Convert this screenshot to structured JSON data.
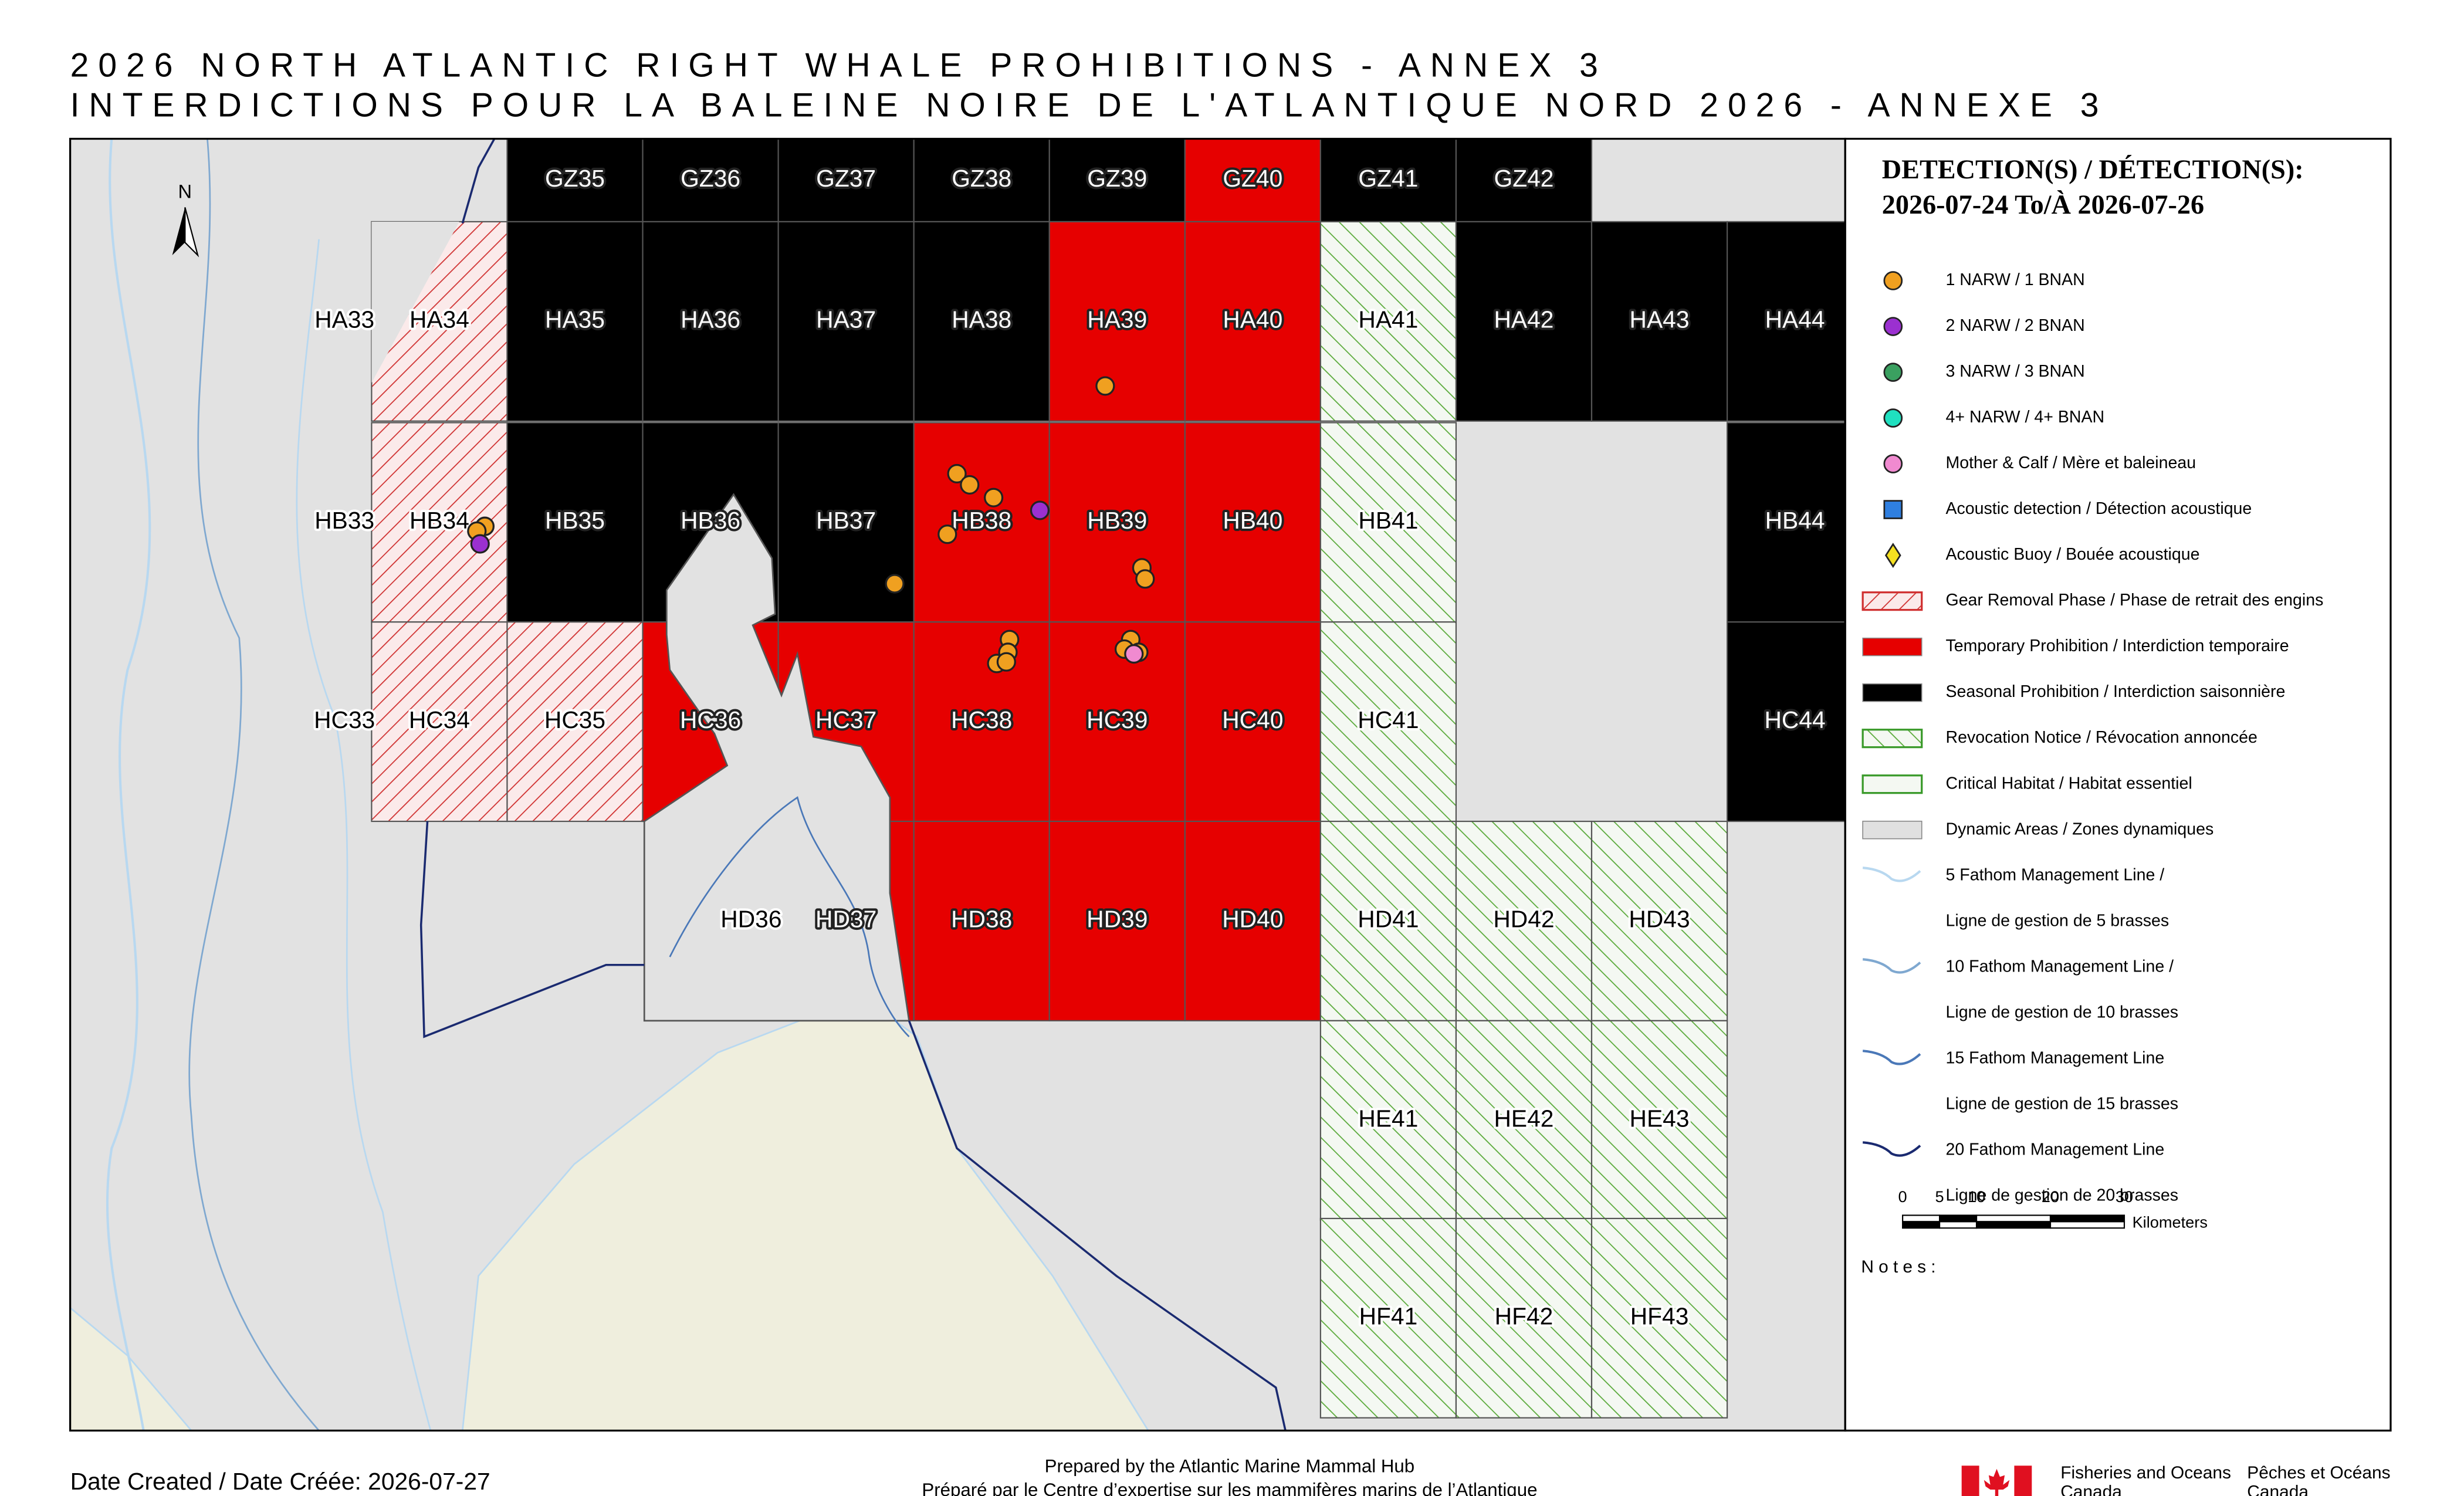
{
  "title": [
    "2026 NORTH ATLANTIC RIGHT WHALE PROHIBITIONS - ANNEX 3",
    "INTERDICTIONS POUR LA BALEINE NOIRE DE L'ATLANTIQUE NORD 2026 - ANNEXE 3"
  ],
  "north": "N",
  "cells": [
    {
      "label": "GZ35",
      "status": "seasonal"
    },
    {
      "label": "GZ36",
      "status": "seasonal"
    },
    {
      "label": "GZ37",
      "status": "seasonal"
    },
    {
      "label": "GZ38",
      "status": "seasonal"
    },
    {
      "label": "GZ39",
      "status": "seasonal"
    },
    {
      "label": "GZ40",
      "status": "temporary"
    },
    {
      "label": "GZ41",
      "status": "seasonal"
    },
    {
      "label": "GZ42",
      "status": "seasonal"
    },
    {
      "label": "HA33",
      "status": null
    },
    {
      "label": "HA34",
      "status": "gear"
    },
    {
      "label": "HA35",
      "status": "seasonal"
    },
    {
      "label": "HA36",
      "status": "seasonal"
    },
    {
      "label": "HA37",
      "status": "seasonal"
    },
    {
      "label": "HA38",
      "status": "seasonal"
    },
    {
      "label": "HA39",
      "status": "temporary"
    },
    {
      "label": "HA40",
      "status": "temporary"
    },
    {
      "label": "HA41",
      "status": "revocation"
    },
    {
      "label": "HA42",
      "status": "seasonal"
    },
    {
      "label": "HA43",
      "status": "seasonal"
    },
    {
      "label": "HA44",
      "status": "seasonal"
    },
    {
      "label": "HB33",
      "status": null
    },
    {
      "label": "HB34",
      "status": "gear"
    },
    {
      "label": "HB35",
      "status": "seasonal"
    },
    {
      "label": "HB36",
      "status": "seasonal"
    },
    {
      "label": "HB37",
      "status": "seasonal"
    },
    {
      "label": "HB38",
      "status": "temporary"
    },
    {
      "label": "HB39",
      "status": "temporary"
    },
    {
      "label": "HB40",
      "status": "temporary"
    },
    {
      "label": "HB41",
      "status": "revocation"
    },
    {
      "label": "HB44",
      "status": "seasonal"
    },
    {
      "label": "HC33",
      "status": null
    },
    {
      "label": "HC34",
      "status": "gear"
    },
    {
      "label": "HC35",
      "status": "gear"
    },
    {
      "label": "HC36",
      "status": "temporary"
    },
    {
      "label": "HC37",
      "status": "temporary"
    },
    {
      "label": "HC38",
      "status": "temporary"
    },
    {
      "label": "HC39",
      "status": "temporary"
    },
    {
      "label": "HC40",
      "status": "temporary"
    },
    {
      "label": "HC41",
      "status": "revocation"
    },
    {
      "label": "HC44",
      "status": "seasonal"
    },
    {
      "label": "HD36",
      "status": null
    },
    {
      "label": "HD37",
      "status": "temporary"
    },
    {
      "label": "HD38",
      "status": "temporary"
    },
    {
      "label": "HD39",
      "status": "temporary"
    },
    {
      "label": "HD40",
      "status": "temporary"
    },
    {
      "label": "HD41",
      "status": "revocation"
    },
    {
      "label": "HD42",
      "status": "revocation"
    },
    {
      "label": "HD43",
      "status": "revocation"
    },
    {
      "label": "HE41",
      "status": "revocation"
    },
    {
      "label": "HE42",
      "status": "revocation"
    },
    {
      "label": "HE43",
      "status": "revocation"
    },
    {
      "label": "HF41",
      "status": "revocation"
    },
    {
      "label": "HF42",
      "status": "revocation"
    },
    {
      "label": "HF43",
      "status": "revocation"
    }
  ],
  "legend": {
    "title": "DETECTION(S) / DÉTECTION(S):",
    "dates": "2026-07-24 To/À 2026-07-26",
    "items": [
      {
        "symbol": "circle",
        "color": "#f0a020",
        "lines": [
          "1 NARW / 1 BNAN"
        ]
      },
      {
        "symbol": "circle",
        "color": "#9b30d0",
        "lines": [
          "2 NARW / 2 BNAN"
        ]
      },
      {
        "symbol": "circle",
        "color": "#3aa060",
        "lines": [
          "3 NARW / 3 BNAN"
        ]
      },
      {
        "symbol": "circle",
        "color": "#20e0c0",
        "lines": [
          "4+ NARW / 4+ BNAN"
        ]
      },
      {
        "symbol": "circle",
        "color": "#f08ad0",
        "lines": [
          "Mother & Calf / Mère et baleineau"
        ]
      },
      {
        "symbol": "square",
        "color": "#2f7fe0",
        "lines": [
          "Acoustic detection / Détection acoustique"
        ]
      },
      {
        "symbol": "diamond",
        "color": "#f5e020",
        "lines": [
          "Acoustic Buoy / Bouée acoustique"
        ]
      },
      {
        "symbol": "gear",
        "color": "#d03030",
        "lines": [
          "Gear Removal Phase / Phase de retrait des engins"
        ]
      },
      {
        "symbol": "fill",
        "color": "#e60000",
        "lines": [
          "Temporary Prohibition / Interdiction temporaire"
        ]
      },
      {
        "symbol": "fill",
        "color": "#000000",
        "lines": [
          "Seasonal Prohibition / Interdiction saisonnière"
        ]
      },
      {
        "symbol": "revocation",
        "color": "#3a9a2a",
        "lines": [
          "Revocation Notice / Révocation annoncée"
        ]
      },
      {
        "symbol": "outline",
        "color": "#3a9a2a",
        "lines": [
          "Critical Habitat / Habitat essentiel"
        ]
      },
      {
        "symbol": "fill",
        "color": "#e0e0e0",
        "lines": [
          "Dynamic Areas / Zones dynamiques"
        ]
      },
      {
        "symbol": "line",
        "color": "#b8d8f0",
        "lines": [
          "5 Fathom Management Line /",
          "Ligne de gestion de 5 brasses"
        ]
      },
      {
        "symbol": "line",
        "color": "#7fa8d0",
        "lines": [
          "10 Fathom Management Line /",
          "Ligne de gestion de 10 brasses"
        ]
      },
      {
        "symbol": "line",
        "color": "#4a78b8",
        "lines": [
          "15 Fathom Management Line",
          "Ligne de gestion de 15 brasses"
        ]
      },
      {
        "symbol": "line",
        "color": "#1a2a70",
        "lines": [
          "20 Fathom Management Line",
          "Ligne de gestion de 20 brasses"
        ]
      }
    ]
  },
  "scale": {
    "ticks": [
      0,
      5,
      10,
      20,
      30
    ],
    "unit": "Kilometers"
  },
  "notes": "Notes:",
  "footer": {
    "date": "Date Created / Date Créée: 2026-07-27",
    "prepared": [
      "Prepared by the Atlantic Marine Mammal Hub",
      "Préparé par le Centre d’expertise sur les mammifères marins de l’Atlantique"
    ],
    "dfo_en": [
      "Fisheries and Oceans",
      "Canada"
    ],
    "dfo_fr": [
      "Pêches et Océans",
      "Canada"
    ]
  }
}
